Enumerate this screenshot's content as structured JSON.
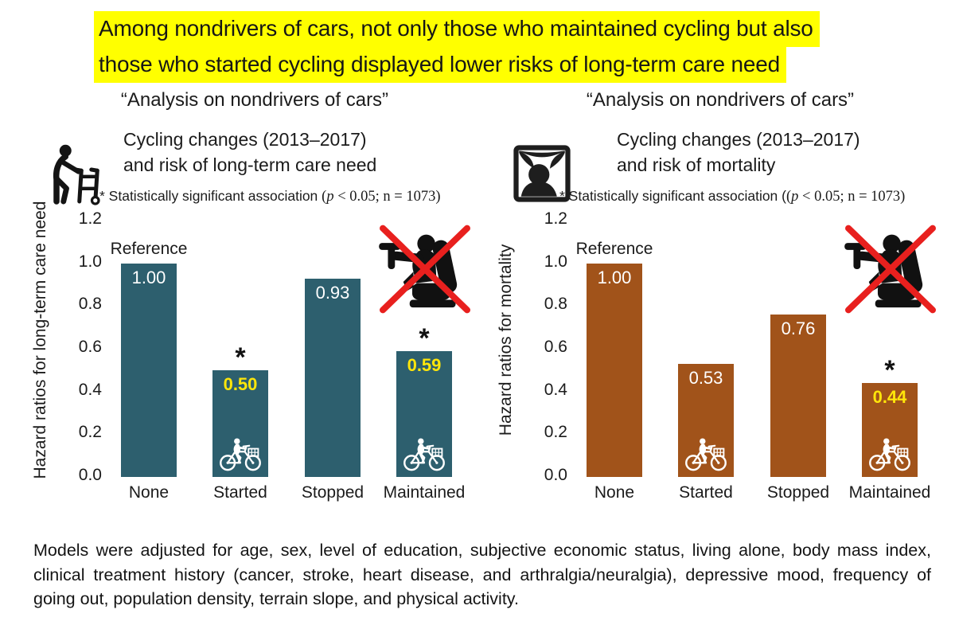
{
  "title": {
    "lines": [
      "Among nondrivers of cars, not only those who maintained cycling but also",
      "those who started cycling displayed lower risks of long-term care need"
    ],
    "highlight_color": "#ffff00"
  },
  "chart_data": [
    {
      "type": "bar",
      "heading": "“Analysis on nondrivers of cars”",
      "subtitle_line1": "Cycling changes (2013–2017)",
      "subtitle_line2": "and risk of long-term care need",
      "note_pre": "* Statistically significant association ",
      "note_open": "(",
      "note_p": "p",
      "note_rest": " < 0.05; n = 1073)",
      "ylabel": "Hazard ratios for long-term care need",
      "yticks": [
        "1.2",
        "1.0",
        "0.8",
        "0.6",
        "0.4",
        "0.2",
        "0.0"
      ],
      "ylim": [
        0,
        1.2
      ],
      "grid": false,
      "legend": "none",
      "reference_label": "Reference",
      "sig_marker": "*",
      "bar_color": "#2d5f6e",
      "categories": [
        "None",
        "Started",
        "Stopped",
        "Maintained"
      ],
      "values": [
        1.0,
        0.5,
        0.93,
        0.59
      ],
      "value_labels": [
        "1.00",
        "0.50",
        "0.93",
        "0.59"
      ],
      "value_colors": [
        "#ffffff",
        "#ffe60a",
        "#ffffff",
        "#ffe60a"
      ],
      "significant": [
        false,
        true,
        false,
        true
      ],
      "bike_icon": [
        false,
        true,
        false,
        true
      ]
    },
    {
      "type": "bar",
      "heading": "“Analysis on nondrivers of cars”",
      "subtitle_line1": "Cycling changes (2013–2017)",
      "subtitle_line2": "and risk of mortality",
      "note_pre": "* Statistically significant association (",
      "note_open": "(",
      "note_p": "p",
      "note_rest": " < 0.05; n = 1073)",
      "ylabel": "Hazard ratios for  mortality",
      "yticks": [
        "1.2",
        "1.0",
        "0.8",
        "0.6",
        "0.4",
        "0.2",
        "0.0"
      ],
      "ylim": [
        0,
        1.2
      ],
      "grid": false,
      "legend": "none",
      "reference_label": "Reference",
      "sig_marker": "*",
      "bar_color": "#a1531a",
      "categories": [
        "None",
        "Started",
        "Stopped",
        "Maintained"
      ],
      "values": [
        1.0,
        0.53,
        0.76,
        0.44
      ],
      "value_labels": [
        "1.00",
        "0.53",
        "0.76",
        "0.44"
      ],
      "value_colors": [
        "#ffffff",
        "#ffffff",
        "#ffffff",
        "#ffe60a"
      ],
      "significant": [
        false,
        false,
        false,
        true
      ],
      "bike_icon": [
        false,
        true,
        false,
        true
      ]
    }
  ],
  "icons": {
    "left_chart": "walker-icon",
    "right_chart": "memorial-photo-icon",
    "crossed": "no-driving-icon",
    "in_bar": "bicycle-icon",
    "cross_color": "#e8201e"
  },
  "footer": {
    "text": "Models were adjusted for age, sex, level of education, subjective economic status, living alone, body mass index, clinical treatment history (cancer, stroke, heart disease, and arthralgia/neuralgia), depressive mood, frequency of going out, population density, terrain slope, and physical activity."
  }
}
